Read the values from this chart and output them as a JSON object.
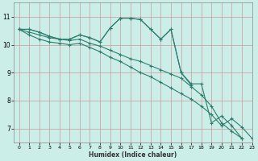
{
  "title": "",
  "xlabel": "Humidex (Indice chaleur)",
  "ylabel": "",
  "bg_color": "#cceee8",
  "grid_color": "#aaaaaa",
  "line_color": "#2e7d6e",
  "xlim": [
    -0.5,
    23
  ],
  "ylim": [
    6.5,
    11.5
  ],
  "yticks": [
    7,
    8,
    9,
    10,
    11
  ],
  "xticks": [
    0,
    1,
    2,
    3,
    4,
    5,
    6,
    7,
    8,
    9,
    10,
    11,
    12,
    13,
    14,
    15,
    16,
    17,
    18,
    19,
    20,
    21,
    22,
    23
  ],
  "series": [
    {
      "x": [
        0,
        1,
        2,
        3,
        4,
        5,
        6,
        7,
        8,
        9,
        10,
        11,
        12,
        13,
        14,
        15,
        16,
        17,
        18,
        19,
        20,
        21,
        22,
        23
      ],
      "y": [
        10.55,
        10.55,
        10.45,
        10.3,
        10.2,
        10.2,
        10.35,
        10.25,
        10.1,
        10.6,
        10.95,
        10.95,
        10.9,
        10.55,
        10.2,
        10.55,
        9.0,
        8.55,
        null,
        null,
        null,
        null,
        null,
        null
      ]
    },
    {
      "x": [
        0,
        1,
        2,
        3,
        4,
        5,
        6,
        7,
        8,
        9,
        10,
        11,
        12,
        13,
        14,
        15,
        16,
        17,
        18,
        19,
        20,
        21,
        22,
        23
      ],
      "y": [
        10.55,
        10.55,
        10.45,
        10.3,
        10.2,
        10.2,
        10.35,
        10.25,
        10.1,
        10.6,
        10.95,
        10.95,
        10.9,
        10.55,
        10.2,
        10.55,
        9.0,
        8.6,
        8.6,
        7.2,
        7.45,
        7.1,
        6.65,
        null
      ]
    },
    {
      "x": [
        0,
        1,
        2,
        3,
        4,
        5,
        6,
        7,
        8,
        9,
        10,
        11,
        12,
        13,
        14,
        15,
        16,
        17,
        18,
        19,
        20,
        21,
        22,
        23
      ],
      "y": [
        10.55,
        10.45,
        10.35,
        10.25,
        10.2,
        10.15,
        10.2,
        10.05,
        9.95,
        9.8,
        9.65,
        9.5,
        9.4,
        9.25,
        9.1,
        8.95,
        8.8,
        8.5,
        8.2,
        7.8,
        7.2,
        6.9,
        6.65,
        null
      ]
    },
    {
      "x": [
        0,
        1,
        2,
        3,
        4,
        5,
        6,
        7,
        8,
        9,
        10,
        11,
        12,
        13,
        14,
        15,
        16,
        17,
        18,
        19,
        20,
        21,
        22,
        23
      ],
      "y": [
        10.55,
        10.35,
        10.2,
        10.1,
        10.05,
        10.0,
        10.05,
        9.9,
        9.75,
        9.55,
        9.4,
        9.2,
        9.0,
        8.85,
        8.65,
        8.45,
        8.25,
        8.05,
        7.8,
        7.5,
        7.1,
        7.35,
        7.05,
        6.65
      ]
    }
  ]
}
